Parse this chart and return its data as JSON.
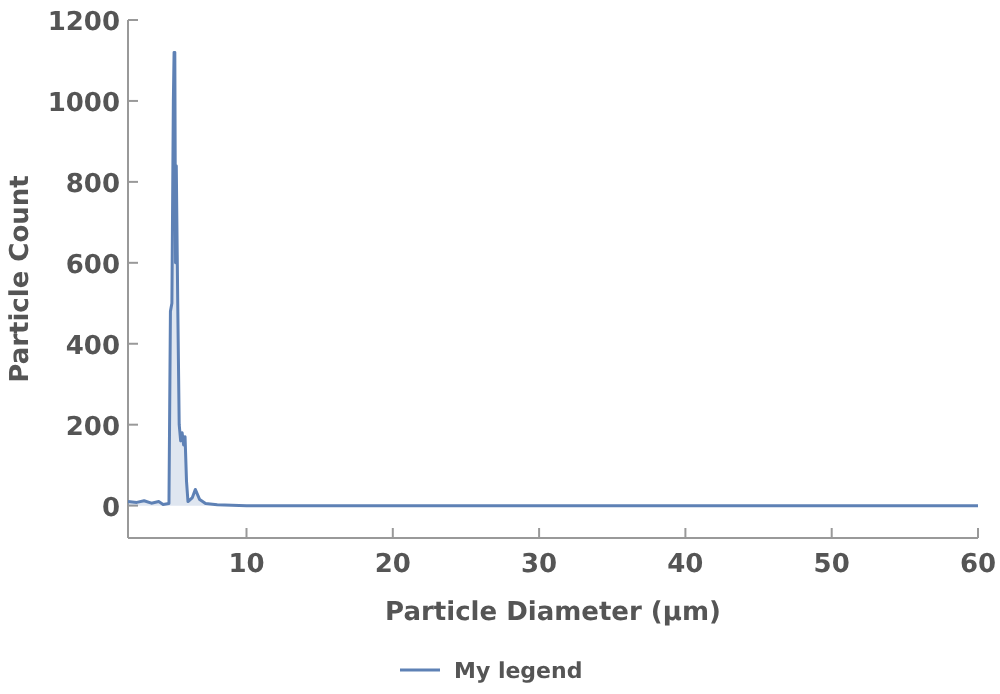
{
  "chart_data": {
    "type": "area",
    "xlabel": "Particle Diameter (µm)",
    "ylabel": "Particle Count",
    "xlim": [
      1.9,
      60
    ],
    "ylim": [
      -80,
      1200
    ],
    "xticks": [
      10,
      20,
      30,
      40,
      50,
      60
    ],
    "yticks": [
      0,
      200,
      400,
      600,
      800,
      1000,
      1200
    ],
    "legend": "bottom",
    "grid": false,
    "series": [
      {
        "name": "My legend",
        "color": "#5e81b5",
        "x": [
          1.9,
          2.5,
          3,
          3.5,
          4,
          4.3,
          4.7,
          4.8,
          4.9,
          5.0,
          5.05,
          5.1,
          5.15,
          5.2,
          5.3,
          5.4,
          5.5,
          5.6,
          5.7,
          5.8,
          5.9,
          6.0,
          6.3,
          6.5,
          6.8,
          7.2,
          8,
          10,
          60
        ],
        "values": [
          10,
          8,
          12,
          6,
          10,
          3,
          5,
          480,
          500,
          1000,
          1120,
          1120,
          600,
          840,
          500,
          200,
          160,
          180,
          150,
          170,
          60,
          10,
          20,
          40,
          15,
          5,
          2,
          0,
          0
        ]
      }
    ]
  }
}
